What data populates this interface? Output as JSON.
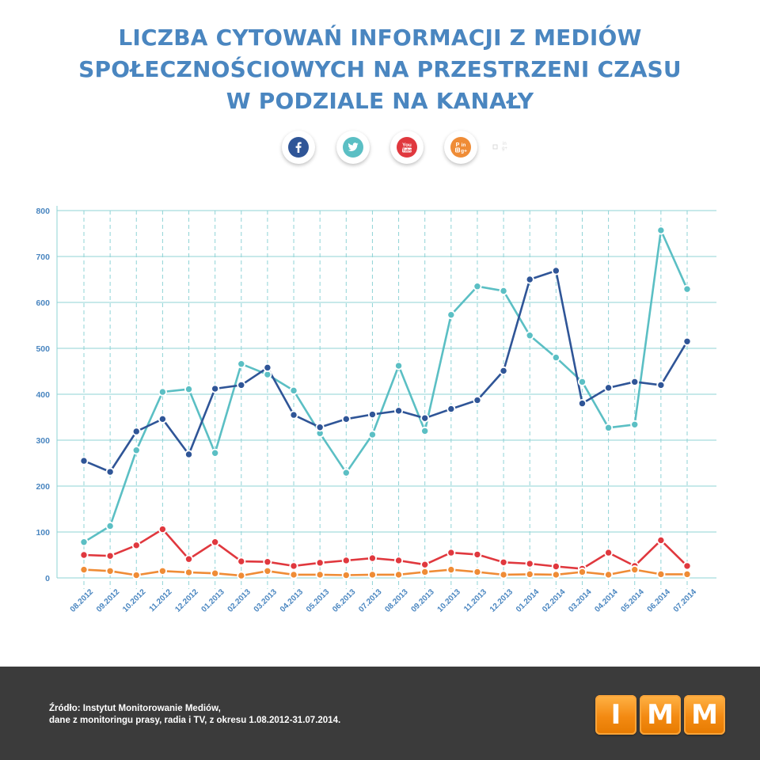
{
  "title": {
    "line1": "LICZBA CYTOWAŃ INFORMACJI Z MEDIÓW",
    "line2": "SPOŁECZNOŚCIOWYCH NA PRZESTRZENI CZASU",
    "line3": "W PODZIALE NA KANAŁY"
  },
  "channels": [
    {
      "name": "Facebook",
      "icon": "facebook-icon",
      "color": "#2f5597"
    },
    {
      "name": "Twitter",
      "icon": "twitter-icon",
      "color": "#5bbfc4"
    },
    {
      "name": "YouTube",
      "icon": "youtube-icon",
      "color": "#e0383e"
    },
    {
      "name": "Pinterest / LinkedIn / Instagram / Google+",
      "icon": "other-social-icon",
      "color": "#ef8c36"
    }
  ],
  "chart_data": {
    "type": "line",
    "title": "Liczba cytowań informacji z mediów społecznościowych na przestrzeni czasu w podziale na kanały",
    "xlabel": "",
    "ylabel": "",
    "ylim": [
      0,
      800
    ],
    "yticks": [
      0,
      100,
      200,
      300,
      400,
      500,
      600,
      700,
      800
    ],
    "grid": true,
    "categories": [
      "08.2012",
      "09.2012",
      "10.2012",
      "11.2012",
      "12.2012",
      "01.2013",
      "02.2013",
      "03.2013",
      "04.2013",
      "05.2013",
      "06.2013",
      "07.2013",
      "08.2013",
      "09.2013",
      "10.2013",
      "11.2013",
      "12.2013",
      "01.2014",
      "02.2014",
      "03.2014",
      "04.2014",
      "05.2014",
      "06.2014",
      "07.2014"
    ],
    "series": [
      {
        "name": "Twitter",
        "color": "#5bbfc4",
        "values": [
          78,
          113,
          278,
          405,
          411,
          272,
          466,
          443,
          408,
          315,
          229,
          312,
          462,
          320,
          573,
          635,
          625,
          528,
          480,
          427,
          327,
          334,
          757,
          629
        ]
      },
      {
        "name": "Facebook",
        "color": "#2f5597",
        "values": [
          255,
          231,
          319,
          346,
          269,
          412,
          420,
          458,
          355,
          328,
          346,
          356,
          364,
          348,
          368,
          387,
          451,
          650,
          669,
          380,
          414,
          427,
          420,
          515
        ]
      },
      {
        "name": "YouTube",
        "color": "#e0383e",
        "values": [
          50,
          48,
          71,
          106,
          41,
          78,
          36,
          35,
          26,
          33,
          38,
          43,
          38,
          29,
          55,
          51,
          34,
          31,
          25,
          20,
          55,
          26,
          82,
          26
        ]
      },
      {
        "name": "Inne",
        "color": "#ef8c36",
        "values": [
          18,
          15,
          6,
          15,
          12,
          10,
          5,
          15,
          7,
          7,
          6,
          7,
          7,
          13,
          18,
          13,
          7,
          8,
          7,
          13,
          7,
          18,
          8,
          8
        ]
      }
    ]
  },
  "footer": {
    "source_line1": "Źródło: Instytut Monitorowanie Mediów,",
    "source_line2": "dane z monitoringu prasy, radia i TV, z okresu 1.08.2012-31.07.2014.",
    "logo_letters": [
      "I",
      "M",
      "M"
    ],
    "logo_color": "#f38a12"
  }
}
